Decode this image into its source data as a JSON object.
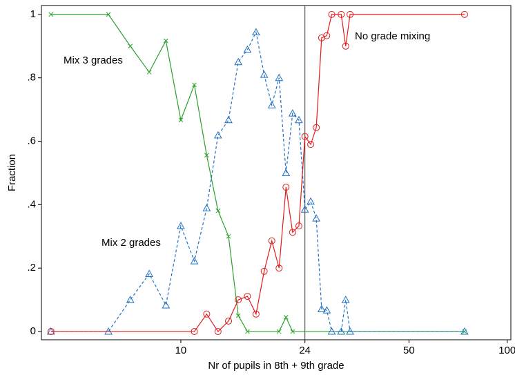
{
  "chart_data": {
    "type": "line",
    "log_x": true,
    "xlabel": "Nr of pupils in 8th + 9th grade",
    "ylabel": "Fraction",
    "xlim": [
      3.74,
      102.6
    ],
    "ylim": [
      -0.026,
      1.028
    ],
    "xticks": [
      10,
      24,
      50,
      100
    ],
    "yticks": [
      0,
      {
        "value": 0.2,
        "label": ".2"
      },
      {
        "value": 0.4,
        "label": ".4"
      },
      {
        "value": 0.6,
        "label": ".6"
      },
      {
        "value": 0.8,
        "label": ".8"
      },
      1
    ],
    "xline": 24,
    "series": [
      {
        "name": "Mix 3 grades",
        "color": "#2ca02c",
        "marker": "x",
        "dashed": false,
        "x": [
          4,
          6,
          7,
          8,
          9,
          10,
          11,
          12,
          13,
          14,
          15,
          16,
          20,
          21,
          22,
          74
        ],
        "values": [
          1,
          1,
          0.9,
          0.818,
          0.917,
          0.667,
          0.778,
          0.556,
          0.381,
          0.3,
          0.05,
          0,
          0,
          0.045,
          0,
          0
        ]
      },
      {
        "name": "Mix 2 grades",
        "color": "#1f6fc4",
        "marker": "triangle",
        "dashed": true,
        "x": [
          4,
          6,
          7,
          8,
          9,
          10,
          11,
          12,
          13,
          14,
          15,
          16,
          17,
          18,
          19,
          20,
          21,
          22,
          23,
          24,
          25,
          26,
          27,
          28,
          29,
          31,
          32,
          33,
          74
        ],
        "values": [
          0,
          0,
          0.1,
          0.182,
          0.083,
          0.333,
          0.222,
          0.389,
          0.619,
          0.667,
          0.85,
          0.889,
          0.944,
          0.81,
          0.714,
          0.8,
          0.5,
          0.688,
          0.667,
          0.385,
          0.41,
          0.357,
          0.071,
          0.067,
          0,
          0,
          0.1,
          0,
          0
        ]
      },
      {
        "name": "No grade mixing",
        "color": "#e31a1c",
        "marker": "circle",
        "dashed": false,
        "x": [
          4,
          11,
          12,
          13,
          14,
          15,
          16,
          17,
          18,
          19,
          20,
          21,
          22,
          23,
          24,
          25,
          26,
          27,
          28,
          29,
          31,
          32,
          33,
          74
        ],
        "values": [
          0,
          0,
          0.055,
          0,
          0.033,
          0.1,
          0.111,
          0.055,
          0.19,
          0.286,
          0.2,
          0.455,
          0.313,
          0.333,
          0.615,
          0.59,
          0.643,
          0.926,
          0.933,
          1,
          1,
          0.9,
          1,
          1
        ]
      }
    ]
  }
}
